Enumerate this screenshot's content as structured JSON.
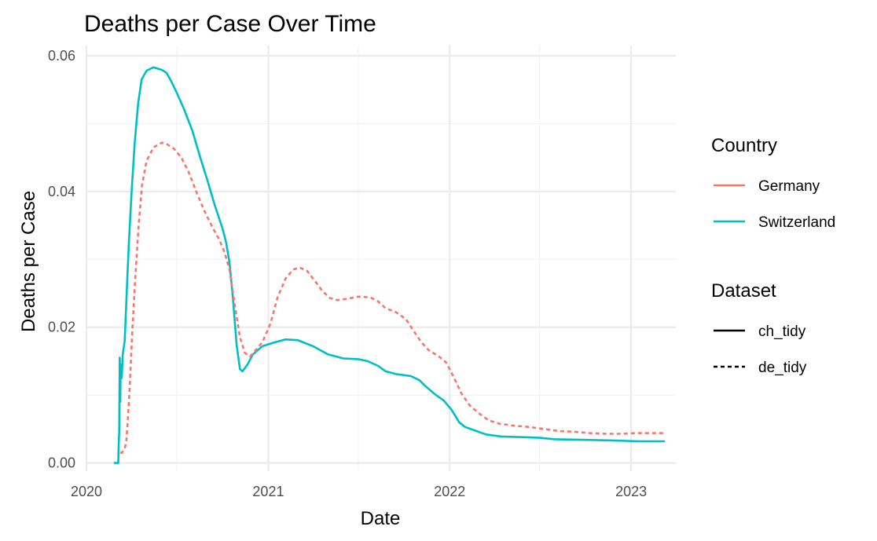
{
  "chart_data": {
    "type": "line",
    "title": "Deaths per Case Over Time",
    "xlabel": "Date",
    "ylabel": "Deaths per Case",
    "x_range": [
      "2020-01-01",
      "2023-04-01"
    ],
    "ylim": [
      -0.0012,
      0.0615
    ],
    "x_ticks": [
      {
        "label": "2020",
        "date": "2020-01-01"
      },
      {
        "label": "2021",
        "date": "2021-01-01"
      },
      {
        "label": "2022",
        "date": "2022-01-01"
      },
      {
        "label": "2023",
        "date": "2023-01-01"
      }
    ],
    "x_minor_ticks": [
      "2020-07-01",
      "2021-07-01",
      "2022-07-01"
    ],
    "y_ticks": [
      {
        "label": "0.00",
        "value": 0.0
      },
      {
        "label": "0.02",
        "value": 0.02
      },
      {
        "label": "0.04",
        "value": 0.04
      },
      {
        "label": "0.06",
        "value": 0.06
      }
    ],
    "y_minor_ticks": [
      0.01,
      0.03,
      0.05
    ],
    "grid": true,
    "legend_placement": "right",
    "legends": [
      {
        "title": "Country",
        "entries": [
          {
            "label": "Germany",
            "color": "#F8766D",
            "linetype": "solid"
          },
          {
            "label": "Switzerland",
            "color": "#00BFC4",
            "linetype": "solid"
          }
        ]
      },
      {
        "title": "Dataset",
        "entries": [
          {
            "label": "ch_tidy",
            "color": "#000000",
            "linetype": "solid"
          },
          {
            "label": "de_tidy",
            "color": "#000000",
            "linetype": "dashed"
          }
        ]
      }
    ],
    "series": [
      {
        "name": "Switzerland",
        "color": "#00BFC4",
        "linetype": "solid",
        "points": [
          [
            "2020-02-25",
            0.0
          ],
          [
            "2020-03-05",
            0.0
          ],
          [
            "2020-03-06",
            0.003
          ],
          [
            "2020-03-07",
            0.0045
          ],
          [
            "2020-03-08",
            0.0155
          ],
          [
            "2020-03-09",
            0.009
          ],
          [
            "2020-03-10",
            0.0145
          ],
          [
            "2020-03-12",
            0.0125
          ],
          [
            "2020-03-14",
            0.016
          ],
          [
            "2020-03-18",
            0.018
          ],
          [
            "2020-03-22",
            0.025
          ],
          [
            "2020-03-26",
            0.032
          ],
          [
            "2020-04-01",
            0.04
          ],
          [
            "2020-04-07",
            0.047
          ],
          [
            "2020-04-14",
            0.053
          ],
          [
            "2020-04-21",
            0.0565
          ],
          [
            "2020-05-01",
            0.0578
          ],
          [
            "2020-05-15",
            0.0583
          ],
          [
            "2020-06-01",
            0.0579
          ],
          [
            "2020-06-10",
            0.0575
          ],
          [
            "2020-06-20",
            0.0562
          ],
          [
            "2020-07-01",
            0.0545
          ],
          [
            "2020-07-15",
            0.0522
          ],
          [
            "2020-08-01",
            0.049
          ],
          [
            "2020-08-15",
            0.0455
          ],
          [
            "2020-09-01",
            0.0415
          ],
          [
            "2020-09-15",
            0.038
          ],
          [
            "2020-10-01",
            0.0345
          ],
          [
            "2020-10-08",
            0.0325
          ],
          [
            "2020-10-15",
            0.0295
          ],
          [
            "2020-10-22",
            0.024
          ],
          [
            "2020-10-29",
            0.0175
          ],
          [
            "2020-11-05",
            0.0138
          ],
          [
            "2020-11-10",
            0.0135
          ],
          [
            "2020-11-20",
            0.0145
          ],
          [
            "2020-12-01",
            0.016
          ],
          [
            "2020-12-20",
            0.0172
          ],
          [
            "2021-01-15",
            0.0178
          ],
          [
            "2021-02-05",
            0.0182
          ],
          [
            "2021-03-01",
            0.0181
          ],
          [
            "2021-04-01",
            0.0172
          ],
          [
            "2021-05-01",
            0.016
          ],
          [
            "2021-06-01",
            0.0154
          ],
          [
            "2021-07-01",
            0.0153
          ],
          [
            "2021-07-20",
            0.015
          ],
          [
            "2021-08-10",
            0.0143
          ],
          [
            "2021-08-25",
            0.0135
          ],
          [
            "2021-09-15",
            0.0131
          ],
          [
            "2021-10-15",
            0.0128
          ],
          [
            "2021-11-01",
            0.0122
          ],
          [
            "2021-11-15",
            0.0112
          ],
          [
            "2021-12-01",
            0.0102
          ],
          [
            "2021-12-20",
            0.0092
          ],
          [
            "2022-01-05",
            0.0078
          ],
          [
            "2022-01-20",
            0.006
          ],
          [
            "2022-02-01",
            0.0053
          ],
          [
            "2022-02-20",
            0.0048
          ],
          [
            "2022-03-15",
            0.0042
          ],
          [
            "2022-04-15",
            0.0039
          ],
          [
            "2022-06-01",
            0.0038
          ],
          [
            "2022-07-01",
            0.0037
          ],
          [
            "2022-08-01",
            0.0035
          ],
          [
            "2022-10-01",
            0.0034
          ],
          [
            "2022-12-01",
            0.0033
          ],
          [
            "2023-01-15",
            0.0032
          ],
          [
            "2023-03-10",
            0.0032
          ]
        ]
      },
      {
        "name": "Germany",
        "color": "#F8766D",
        "linetype": "dashed",
        "points": [
          [
            "2020-03-09",
            0.0015
          ],
          [
            "2020-03-12",
            0.0015
          ],
          [
            "2020-03-15",
            0.0018
          ],
          [
            "2020-03-18",
            0.0022
          ],
          [
            "2020-03-21",
            0.003
          ],
          [
            "2020-03-24",
            0.006
          ],
          [
            "2020-03-28",
            0.011
          ],
          [
            "2020-04-02",
            0.019
          ],
          [
            "2020-04-08",
            0.027
          ],
          [
            "2020-04-15",
            0.035
          ],
          [
            "2020-04-22",
            0.041
          ],
          [
            "2020-05-01",
            0.0445
          ],
          [
            "2020-05-15",
            0.0465
          ],
          [
            "2020-06-01",
            0.0472
          ],
          [
            "2020-06-10",
            0.047
          ],
          [
            "2020-06-25",
            0.0463
          ],
          [
            "2020-07-10",
            0.045
          ],
          [
            "2020-07-25",
            0.0428
          ],
          [
            "2020-08-10",
            0.0398
          ],
          [
            "2020-08-25",
            0.0372
          ],
          [
            "2020-09-10",
            0.0348
          ],
          [
            "2020-09-25",
            0.0328
          ],
          [
            "2020-10-05",
            0.031
          ],
          [
            "2020-10-15",
            0.0285
          ],
          [
            "2020-10-25",
            0.0235
          ],
          [
            "2020-11-05",
            0.0185
          ],
          [
            "2020-11-15",
            0.0162
          ],
          [
            "2020-11-25",
            0.0157
          ],
          [
            "2020-12-05",
            0.0165
          ],
          [
            "2020-12-20",
            0.0178
          ],
          [
            "2021-01-05",
            0.0205
          ],
          [
            "2021-01-20",
            0.0245
          ],
          [
            "2021-02-05",
            0.0272
          ],
          [
            "2021-02-20",
            0.0285
          ],
          [
            "2021-03-05",
            0.0288
          ],
          [
            "2021-03-20",
            0.0283
          ],
          [
            "2021-04-05",
            0.0268
          ],
          [
            "2021-04-20",
            0.0253
          ],
          [
            "2021-05-05",
            0.0243
          ],
          [
            "2021-05-20",
            0.024
          ],
          [
            "2021-06-10",
            0.0242
          ],
          [
            "2021-07-01",
            0.0245
          ],
          [
            "2021-07-25",
            0.0244
          ],
          [
            "2021-08-10",
            0.0238
          ],
          [
            "2021-08-25",
            0.0228
          ],
          [
            "2021-09-15",
            0.0222
          ],
          [
            "2021-10-05",
            0.0212
          ],
          [
            "2021-10-20",
            0.0195
          ],
          [
            "2021-11-05",
            0.0178
          ],
          [
            "2021-11-20",
            0.0166
          ],
          [
            "2021-12-10",
            0.0157
          ],
          [
            "2021-12-25",
            0.0148
          ],
          [
            "2022-01-10",
            0.0125
          ],
          [
            "2022-01-25",
            0.0102
          ],
          [
            "2022-02-10",
            0.0085
          ],
          [
            "2022-03-01",
            0.0073
          ],
          [
            "2022-03-20",
            0.0063
          ],
          [
            "2022-04-10",
            0.0058
          ],
          [
            "2022-05-10",
            0.0055
          ],
          [
            "2022-06-10",
            0.0053
          ],
          [
            "2022-07-10",
            0.005
          ],
          [
            "2022-08-10",
            0.0047
          ],
          [
            "2022-09-10",
            0.0046
          ],
          [
            "2022-10-10",
            0.0044
          ],
          [
            "2022-11-10",
            0.0043
          ],
          [
            "2022-12-10",
            0.0043
          ],
          [
            "2023-01-10",
            0.0044
          ],
          [
            "2023-03-10",
            0.0044
          ]
        ]
      }
    ]
  }
}
